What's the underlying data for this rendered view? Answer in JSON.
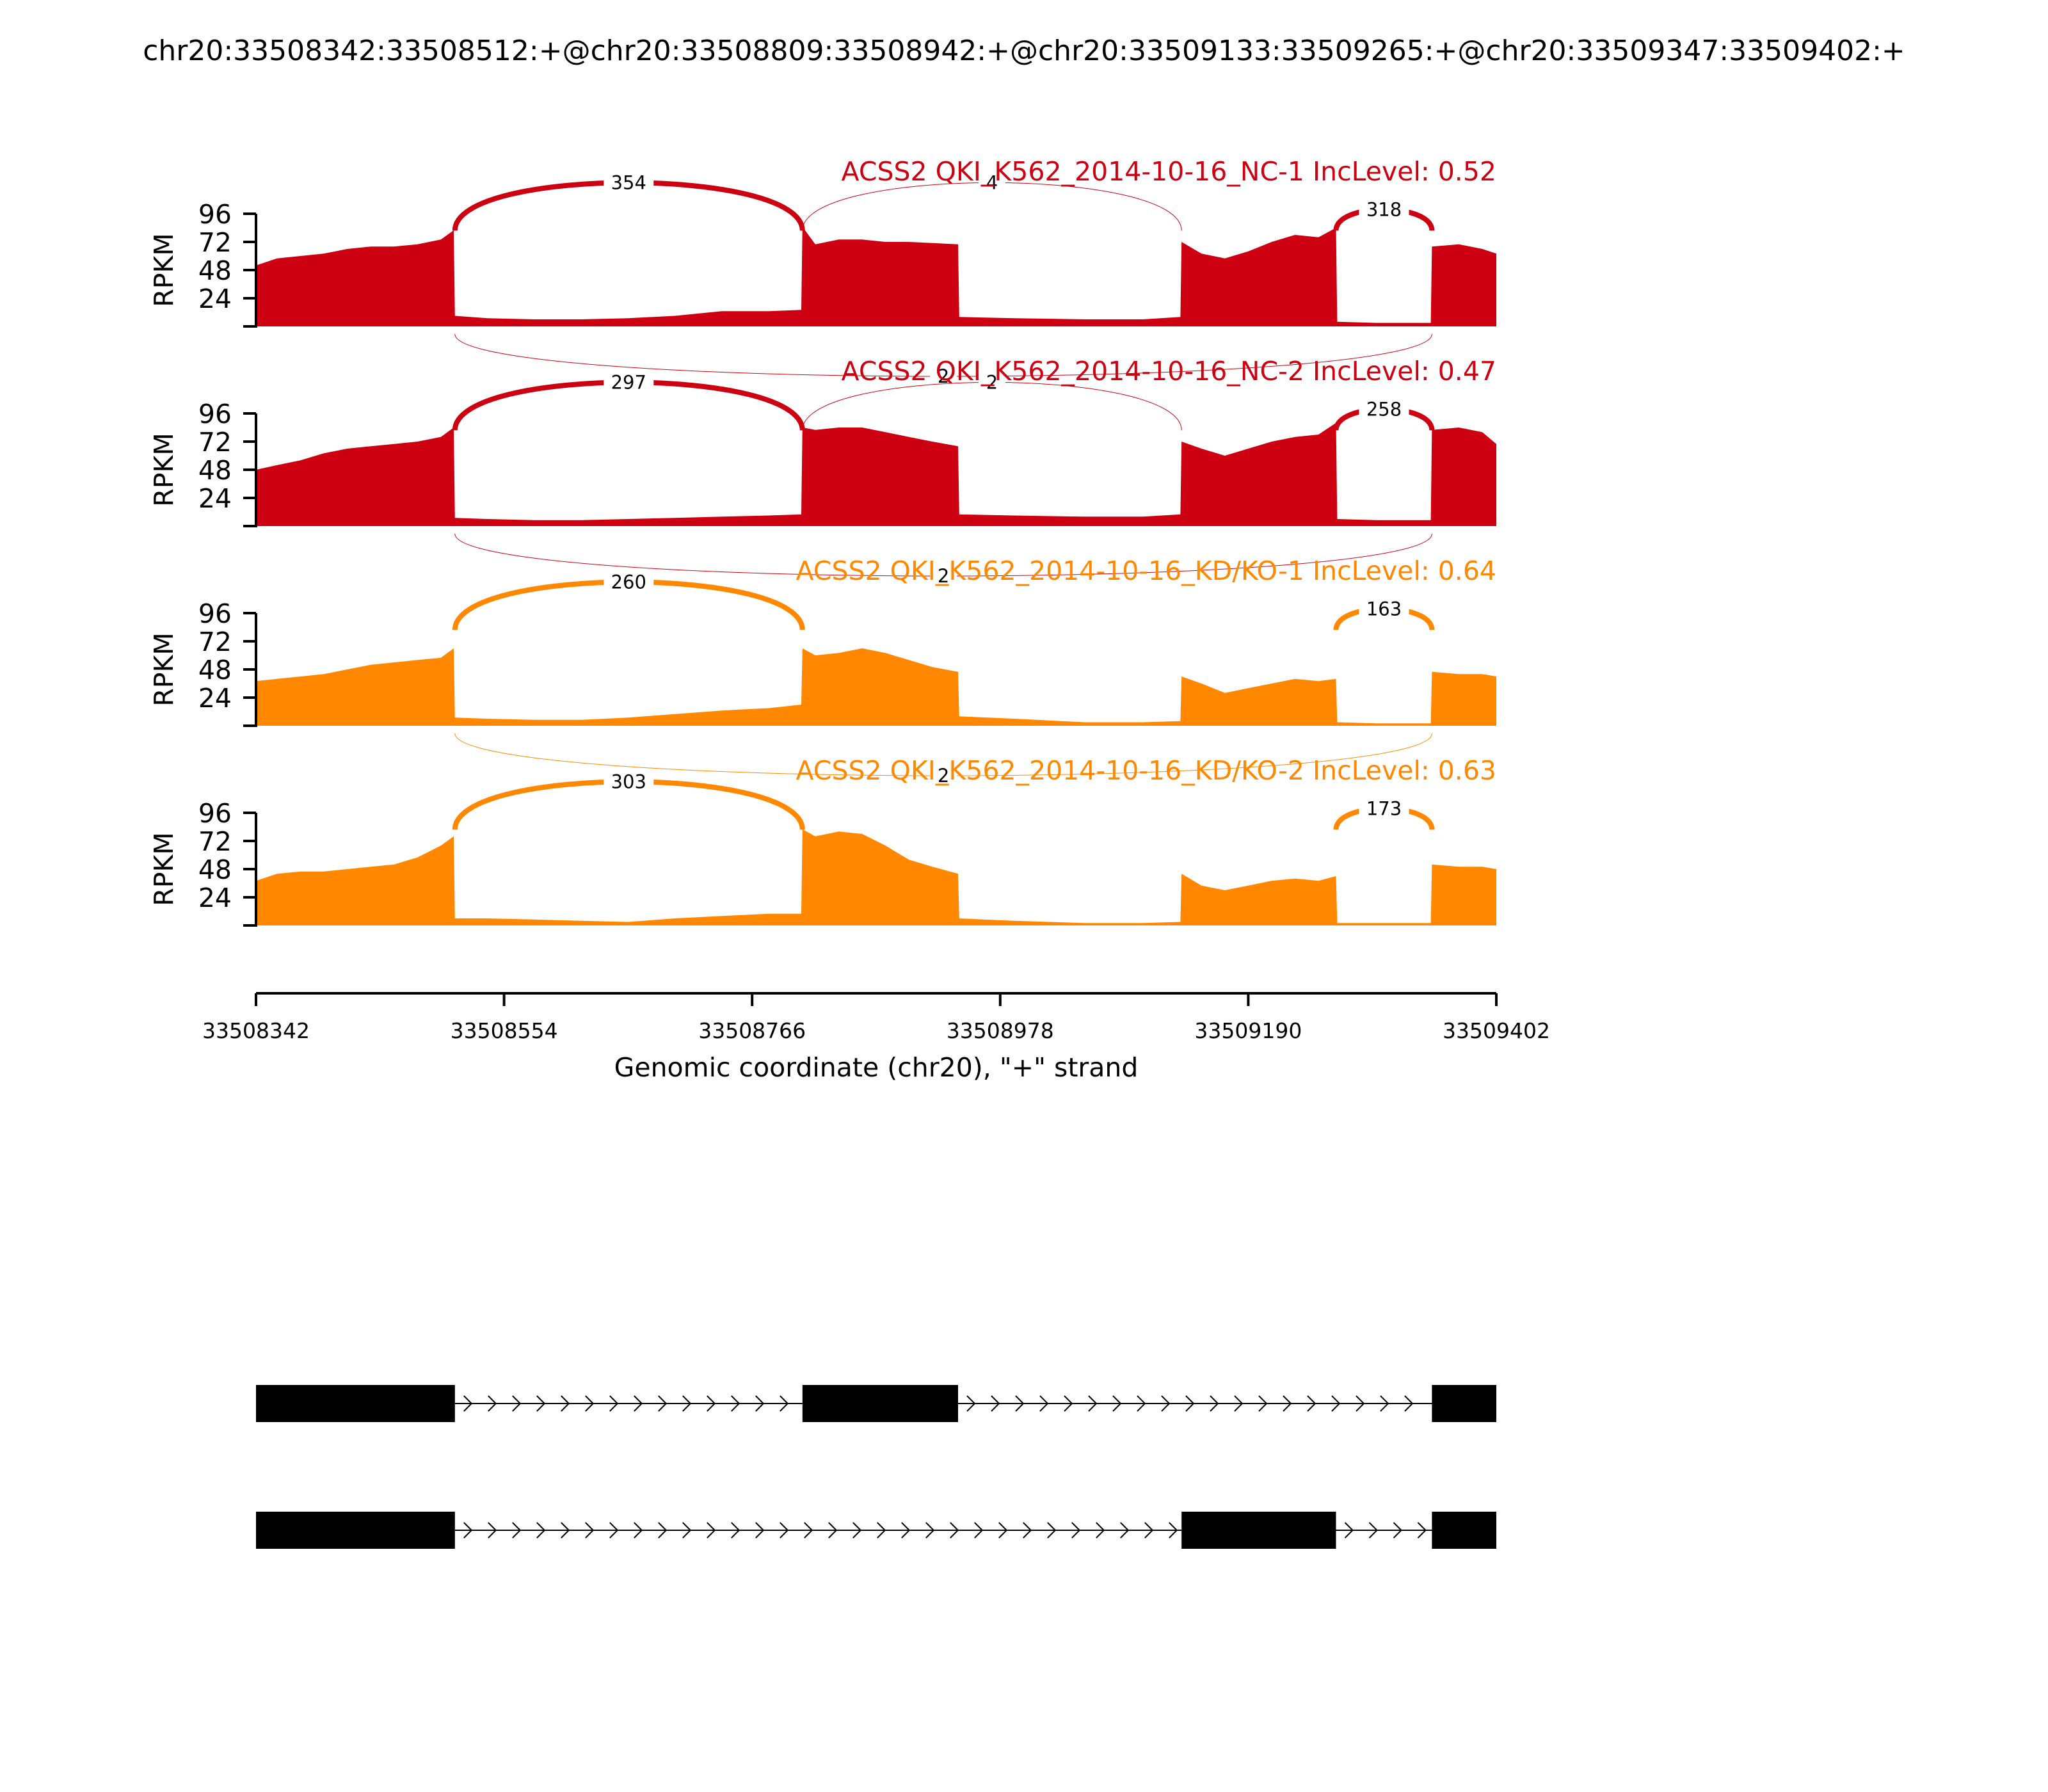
{
  "title": "chr20:33508342:33508512:+@chr20:33508809:33508942:+@chr20:33509133:33509265:+@chr20:33509347:33509402:+",
  "chart_data": {
    "type": "area",
    "title": "chr20:33508342:33508512:+@chr20:33508809:33508942:+@chr20:33509133:33509265:+@chr20:33509347:33509402:+",
    "xlabel": "Genomic coordinate (chr20), \"+\" strand",
    "ylabel": "RPKM",
    "xlim": [
      33508342,
      33509402
    ],
    "x_ticks": [
      "33508342",
      "33508554",
      "33508766",
      "33508978",
      "33509190",
      "33509402"
    ],
    "y_ticks": [
      "24",
      "48",
      "72",
      "96"
    ],
    "ylim": [
      0,
      96
    ],
    "exons": [
      [
        33508342,
        33508512
      ],
      [
        33508809,
        33508942
      ],
      [
        33509133,
        33509265
      ],
      [
        33509347,
        33509402
      ]
    ],
    "tracks": [
      {
        "name": "ACSS2 QKI_K562_2014-10-16_NC-1 IncLevel: 0.52",
        "color": "#CC0011",
        "coverage": [
          [
            33508342,
            52
          ],
          [
            33508360,
            58
          ],
          [
            33508380,
            60
          ],
          [
            33508400,
            62
          ],
          [
            33508420,
            66
          ],
          [
            33508440,
            68
          ],
          [
            33508460,
            68
          ],
          [
            33508480,
            70
          ],
          [
            33508500,
            74
          ],
          [
            33508511,
            82
          ],
          [
            33508512,
            9
          ],
          [
            33508540,
            7
          ],
          [
            33508580,
            6
          ],
          [
            33508620,
            6
          ],
          [
            33508660,
            7
          ],
          [
            33508700,
            9
          ],
          [
            33508740,
            13
          ],
          [
            33508780,
            13
          ],
          [
            33508808,
            14
          ],
          [
            33508809,
            85
          ],
          [
            33508820,
            70
          ],
          [
            33508840,
            74
          ],
          [
            33508860,
            74
          ],
          [
            33508880,
            72
          ],
          [
            33508900,
            72
          ],
          [
            33508920,
            71
          ],
          [
            33508942,
            70
          ],
          [
            33508943,
            8
          ],
          [
            33508990,
            7
          ],
          [
            33509050,
            6
          ],
          [
            33509100,
            6
          ],
          [
            33509132,
            8
          ],
          [
            33509133,
            72
          ],
          [
            33509150,
            62
          ],
          [
            33509170,
            58
          ],
          [
            33509190,
            64
          ],
          [
            33509210,
            72
          ],
          [
            33509230,
            78
          ],
          [
            33509250,
            76
          ],
          [
            33509265,
            84
          ],
          [
            33509266,
            4
          ],
          [
            33509300,
            3
          ],
          [
            33509346,
            3
          ],
          [
            33509347,
            68
          ],
          [
            33509370,
            70
          ],
          [
            33509390,
            66
          ],
          [
            33509402,
            62
          ]
        ],
        "junctions": [
          {
            "from": 33508512,
            "to": 33508809,
            "count": "354",
            "side": "above"
          },
          {
            "from": 33508809,
            "to": 33509133,
            "count": "4",
            "side": "above"
          },
          {
            "from": 33509265,
            "to": 33509347,
            "count": "318",
            "side": "above"
          },
          {
            "from": 33508512,
            "to": 33509347,
            "count": "2",
            "side": "below"
          }
        ]
      },
      {
        "name": "ACSS2 QKI_K562_2014-10-16_NC-2 IncLevel: 0.47",
        "color": "#CC0011",
        "coverage": [
          [
            33508342,
            48
          ],
          [
            33508360,
            52
          ],
          [
            33508380,
            56
          ],
          [
            33508400,
            62
          ],
          [
            33508420,
            66
          ],
          [
            33508440,
            68
          ],
          [
            33508460,
            70
          ],
          [
            33508480,
            72
          ],
          [
            33508500,
            76
          ],
          [
            33508511,
            84
          ],
          [
            33508512,
            7
          ],
          [
            33508540,
            6
          ],
          [
            33508580,
            5
          ],
          [
            33508620,
            5
          ],
          [
            33508660,
            6
          ],
          [
            33508700,
            7
          ],
          [
            33508740,
            8
          ],
          [
            33508780,
            9
          ],
          [
            33508808,
            10
          ],
          [
            33508809,
            84
          ],
          [
            33508820,
            82
          ],
          [
            33508840,
            84
          ],
          [
            33508860,
            84
          ],
          [
            33508880,
            80
          ],
          [
            33508900,
            76
          ],
          [
            33508920,
            72
          ],
          [
            33508942,
            68
          ],
          [
            33508943,
            10
          ],
          [
            33508990,
            9
          ],
          [
            33509050,
            8
          ],
          [
            33509100,
            8
          ],
          [
            33509132,
            10
          ],
          [
            33509133,
            72
          ],
          [
            33509150,
            66
          ],
          [
            33509170,
            60
          ],
          [
            33509190,
            66
          ],
          [
            33509210,
            72
          ],
          [
            33509230,
            76
          ],
          [
            33509250,
            78
          ],
          [
            33509265,
            88
          ],
          [
            33509266,
            6
          ],
          [
            33509300,
            5
          ],
          [
            33509346,
            5
          ],
          [
            33509347,
            82
          ],
          [
            33509370,
            84
          ],
          [
            33509390,
            80
          ],
          [
            33509402,
            70
          ]
        ],
        "junctions": [
          {
            "from": 33508512,
            "to": 33508809,
            "count": "297",
            "side": "above"
          },
          {
            "from": 33508809,
            "to": 33509133,
            "count": "2",
            "side": "above"
          },
          {
            "from": 33509265,
            "to": 33509347,
            "count": "258",
            "side": "above"
          },
          {
            "from": 33508512,
            "to": 33509347,
            "count": "2",
            "side": "below"
          }
        ]
      },
      {
        "name": "ACSS2 QKI_K562_2014-10-16_KD/KO-1 IncLevel: 0.64",
        "color": "#FF8800",
        "coverage": [
          [
            33508342,
            38
          ],
          [
            33508360,
            40
          ],
          [
            33508380,
            42
          ],
          [
            33508400,
            44
          ],
          [
            33508420,
            48
          ],
          [
            33508440,
            52
          ],
          [
            33508460,
            54
          ],
          [
            33508480,
            56
          ],
          [
            33508500,
            58
          ],
          [
            33508511,
            66
          ],
          [
            33508512,
            7
          ],
          [
            33508540,
            6
          ],
          [
            33508580,
            5
          ],
          [
            33508620,
            5
          ],
          [
            33508660,
            7
          ],
          [
            33508700,
            10
          ],
          [
            33508740,
            13
          ],
          [
            33508780,
            15
          ],
          [
            33508808,
            18
          ],
          [
            33508809,
            66
          ],
          [
            33508820,
            60
          ],
          [
            33508840,
            62
          ],
          [
            33508860,
            66
          ],
          [
            33508880,
            62
          ],
          [
            33508900,
            56
          ],
          [
            33508920,
            50
          ],
          [
            33508942,
            46
          ],
          [
            33508943,
            8
          ],
          [
            33508990,
            6
          ],
          [
            33509050,
            3
          ],
          [
            33509100,
            3
          ],
          [
            33509132,
            4
          ],
          [
            33509133,
            42
          ],
          [
            33509150,
            36
          ],
          [
            33509170,
            28
          ],
          [
            33509190,
            32
          ],
          [
            33509210,
            36
          ],
          [
            33509230,
            40
          ],
          [
            33509250,
            38
          ],
          [
            33509265,
            40
          ],
          [
            33509266,
            3
          ],
          [
            33509300,
            2
          ],
          [
            33509346,
            2
          ],
          [
            33509347,
            46
          ],
          [
            33509370,
            44
          ],
          [
            33509390,
            44
          ],
          [
            33509402,
            42
          ]
        ],
        "junctions": [
          {
            "from": 33508512,
            "to": 33508809,
            "count": "260",
            "side": "above"
          },
          {
            "from": 33509265,
            "to": 33509347,
            "count": "163",
            "side": "above"
          },
          {
            "from": 33508512,
            "to": 33509347,
            "count": "2",
            "side": "below"
          }
        ]
      },
      {
        "name": "ACSS2 QKI_K562_2014-10-16_KD/KO-2 IncLevel: 0.63",
        "color": "#FF8800",
        "coverage": [
          [
            33508342,
            38
          ],
          [
            33508360,
            44
          ],
          [
            33508380,
            46
          ],
          [
            33508400,
            46
          ],
          [
            33508420,
            48
          ],
          [
            33508440,
            50
          ],
          [
            33508460,
            52
          ],
          [
            33508480,
            58
          ],
          [
            33508500,
            68
          ],
          [
            33508511,
            76
          ],
          [
            33508512,
            6
          ],
          [
            33508540,
            6
          ],
          [
            33508580,
            5
          ],
          [
            33508620,
            4
          ],
          [
            33508660,
            3
          ],
          [
            33508700,
            6
          ],
          [
            33508740,
            8
          ],
          [
            33508780,
            10
          ],
          [
            33508808,
            10
          ],
          [
            33508809,
            82
          ],
          [
            33508820,
            76
          ],
          [
            33508840,
            80
          ],
          [
            33508860,
            78
          ],
          [
            33508880,
            68
          ],
          [
            33508900,
            56
          ],
          [
            33508920,
            50
          ],
          [
            33508942,
            44
          ],
          [
            33508943,
            6
          ],
          [
            33508990,
            4
          ],
          [
            33509050,
            2
          ],
          [
            33509100,
            2
          ],
          [
            33509132,
            3
          ],
          [
            33509133,
            44
          ],
          [
            33509150,
            34
          ],
          [
            33509170,
            30
          ],
          [
            33509190,
            34
          ],
          [
            33509210,
            38
          ],
          [
            33509230,
            40
          ],
          [
            33509250,
            38
          ],
          [
            33509265,
            42
          ],
          [
            33509266,
            2
          ],
          [
            33509300,
            2
          ],
          [
            33509346,
            2
          ],
          [
            33509347,
            52
          ],
          [
            33509370,
            50
          ],
          [
            33509390,
            50
          ],
          [
            33509402,
            48
          ]
        ],
        "junctions": [
          {
            "from": 33508512,
            "to": 33508809,
            "count": "303",
            "side": "above"
          },
          {
            "from": 33509265,
            "to": 33509347,
            "count": "173",
            "side": "above"
          }
        ]
      }
    ],
    "isoforms": [
      {
        "exons": [
          [
            33508342,
            33508512
          ],
          [
            33508809,
            33508942
          ],
          [
            33509347,
            33509402
          ]
        ]
      },
      {
        "exons": [
          [
            33508342,
            33508512
          ],
          [
            33509133,
            33509265
          ],
          [
            33509347,
            33509402
          ]
        ]
      }
    ]
  }
}
